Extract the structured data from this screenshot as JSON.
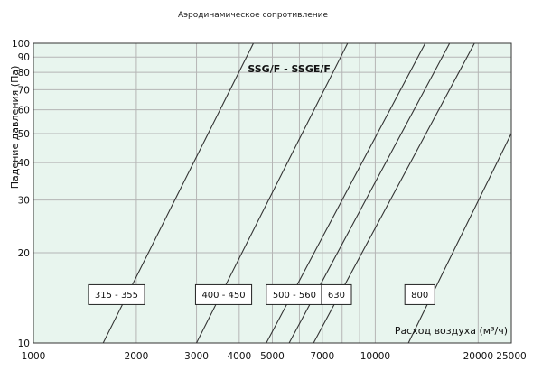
{
  "chart_data": {
    "type": "line",
    "title": "Аэродинамическое сопротивление",
    "annotation": "SSG/F - SSGE/F",
    "xlabel": "Расход воздуха (м³/ч)",
    "ylabel": "Падение давления (Па)",
    "x_scale": "log",
    "y_scale": "log",
    "xlim": [
      1000,
      25000
    ],
    "ylim": [
      10,
      100
    ],
    "x_ticks": [
      1000,
      2000,
      3000,
      4000,
      5000,
      7000,
      10000,
      20000,
      25000
    ],
    "y_ticks": [
      10,
      20,
      30,
      40,
      50,
      60,
      70,
      80,
      90,
      100
    ],
    "x_tick_labels": [
      "1000",
      "2000",
      "3000",
      "4000",
      "5000",
      "7000",
      "10000",
      "20000",
      "25000"
    ],
    "y_tick_labels": [
      "10",
      "20",
      "30",
      "40",
      "50",
      "60",
      "70",
      "80",
      "90",
      "100"
    ],
    "grid": true,
    "background_color": "#e8f5ee",
    "line_color": "#333333",
    "series": [
      {
        "name": "315 - 355",
        "x": [
          1600,
          4400
        ],
        "y": [
          10,
          100
        ]
      },
      {
        "name": "400 - 450",
        "x": [
          3000,
          8300
        ],
        "y": [
          10,
          100
        ]
      },
      {
        "name": "500 - 560",
        "x": [
          4800,
          14000
        ],
        "y": [
          10,
          100
        ]
      },
      {
        "name": "630",
        "x": [
          5600,
          16500
        ],
        "y": [
          10,
          100
        ]
      },
      {
        "name": "800",
        "x": [
          6600,
          19500
        ],
        "y": [
          10,
          100
        ]
      },
      {
        "name": "",
        "x": [
          12500,
          25000
        ],
        "y": [
          10,
          50
        ]
      }
    ],
    "labels": [
      {
        "text": "315 - 355",
        "x": 1750,
        "y": 14.5
      },
      {
        "text": "400 - 450",
        "x": 3600,
        "y": 14.5
      },
      {
        "text": "500 - 560",
        "x": 5800,
        "y": 14.5
      },
      {
        "text": "630",
        "x": 7700,
        "y": 14.5
      },
      {
        "text": "800",
        "x": 13500,
        "y": 14.5
      }
    ],
    "annotation_pos": {
      "x": 5600,
      "y": 80
    }
  }
}
